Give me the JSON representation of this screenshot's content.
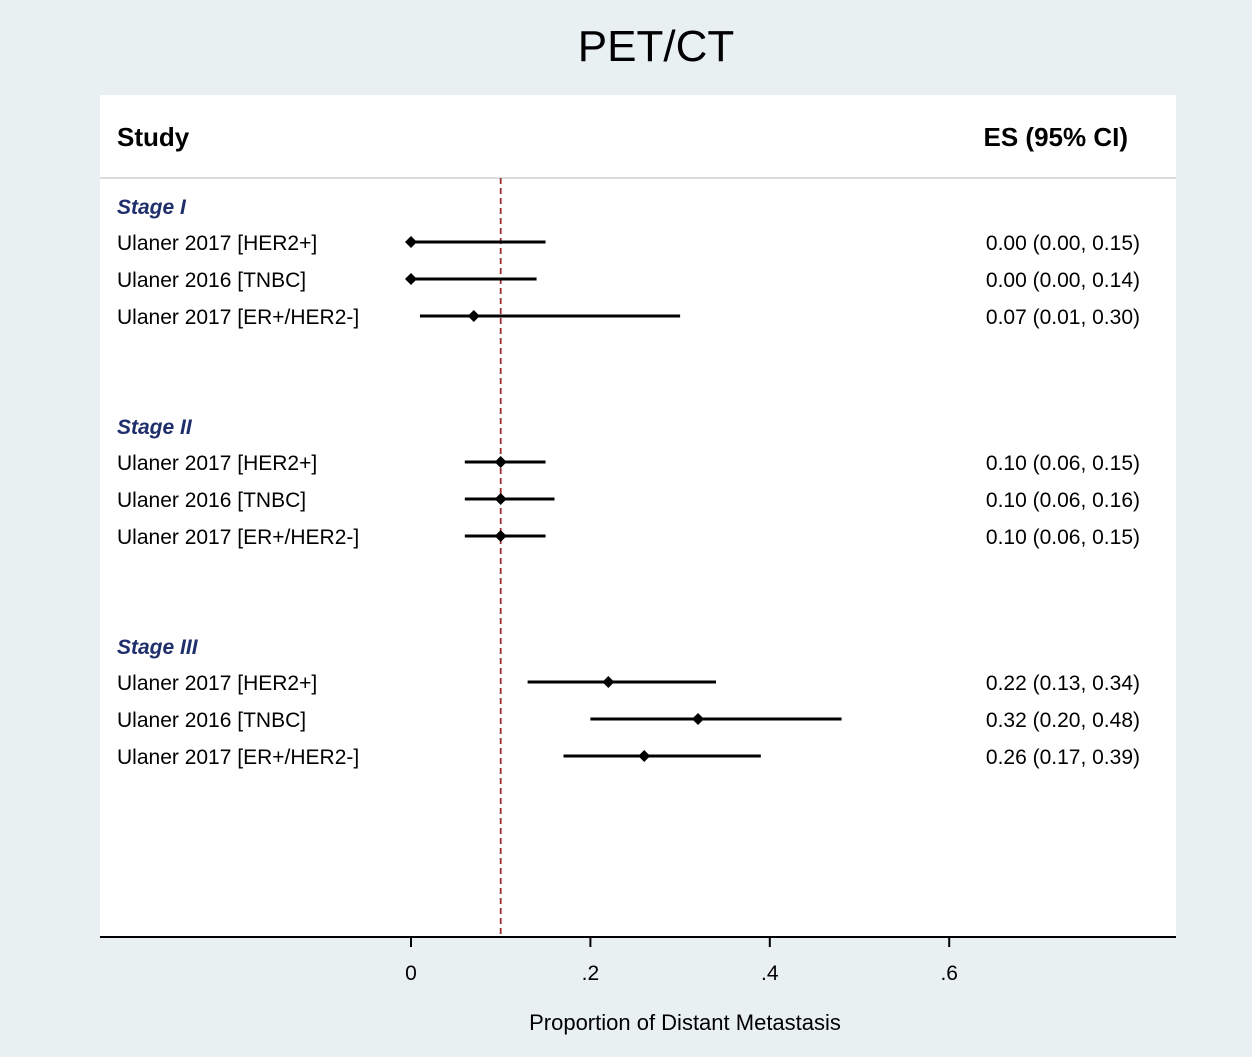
{
  "chart_data": {
    "type": "forest",
    "title": "PET/CT",
    "header_left": "Study",
    "header_right": "ES (95% CI)",
    "xlabel": "Proportion of Distant Metastasis",
    "xlim": [
      0,
      0.6
    ],
    "xticks": [
      "0",
      ".2",
      ".4",
      ".6"
    ],
    "xtick_values": [
      0,
      0.2,
      0.4,
      0.6
    ],
    "reference_line": 0.1,
    "groups": [
      {
        "label": "Stage I",
        "rows": [
          {
            "study": "Ulaner 2017  [HER2+]",
            "es": 0.0,
            "lo": 0.0,
            "hi": 0.15,
            "ci_text": "0.00 (0.00, 0.15)"
          },
          {
            "study": "Ulaner 2016  [TNBC]",
            "es": 0.0,
            "lo": 0.0,
            "hi": 0.14,
            "ci_text": "0.00 (0.00, 0.14)"
          },
          {
            "study": "Ulaner 2017  [ER+/HER2-]",
            "es": 0.07,
            "lo": 0.01,
            "hi": 0.3,
            "ci_text": "0.07 (0.01, 0.30)"
          }
        ]
      },
      {
        "label": "Stage II",
        "rows": [
          {
            "study": "Ulaner 2017  [HER2+]",
            "es": 0.1,
            "lo": 0.06,
            "hi": 0.15,
            "ci_text": "0.10 (0.06, 0.15)"
          },
          {
            "study": "Ulaner 2016  [TNBC]",
            "es": 0.1,
            "lo": 0.06,
            "hi": 0.16,
            "ci_text": "0.10 (0.06, 0.16)"
          },
          {
            "study": "Ulaner 2017  [ER+/HER2-]",
            "es": 0.1,
            "lo": 0.06,
            "hi": 0.15,
            "ci_text": "0.10 (0.06, 0.15)"
          }
        ]
      },
      {
        "label": "Stage III",
        "rows": [
          {
            "study": "Ulaner 2017  [HER2+]",
            "es": 0.22,
            "lo": 0.13,
            "hi": 0.34,
            "ci_text": "0.22 (0.13, 0.34)"
          },
          {
            "study": "Ulaner 2016  [TNBC]",
            "es": 0.32,
            "lo": 0.2,
            "hi": 0.48,
            "ci_text": "0.32 (0.20, 0.48)"
          },
          {
            "study": "Ulaner 2017  [ER+/HER2-]",
            "es": 0.26,
            "lo": 0.17,
            "hi": 0.39,
            "ci_text": "0.26 (0.17, 0.39)"
          }
        ]
      }
    ],
    "colors": {
      "group_label": "#1f2f6b",
      "reference_line": "#9b2d2d",
      "marker": "#000000",
      "background": "#e9f0f2"
    }
  }
}
